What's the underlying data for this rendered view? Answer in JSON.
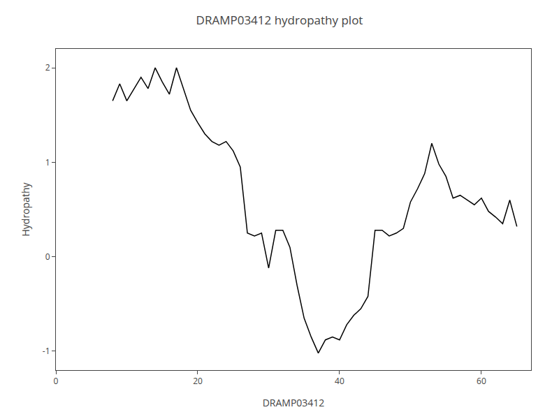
{
  "chart_data": {
    "type": "line",
    "title": "DRAMP03412 hydropathy plot",
    "xlabel": "DRAMP03412",
    "ylabel": "Hydropathy",
    "xlim": [
      0,
      67
    ],
    "ylim": [
      -1.2,
      2.2
    ],
    "xticks": [
      0,
      20,
      40,
      60
    ],
    "yticks": [
      -1,
      0,
      1,
      2
    ],
    "color": "black",
    "grid": false,
    "x": [
      8,
      9,
      10,
      11,
      12,
      13,
      14,
      15,
      16,
      17,
      18,
      19,
      20,
      21,
      22,
      23,
      24,
      25,
      26,
      27,
      28,
      29,
      30,
      31,
      32,
      33,
      34,
      35,
      36,
      37,
      38,
      39,
      40,
      41,
      42,
      43,
      44,
      45,
      46,
      47,
      48,
      49,
      50,
      51,
      52,
      53,
      54,
      55,
      56,
      57,
      58,
      59,
      60,
      61,
      62,
      63,
      64,
      65
    ],
    "values": [
      1.65,
      1.83,
      1.65,
      1.78,
      1.9,
      1.78,
      2.0,
      1.85,
      1.72,
      2.0,
      1.78,
      1.55,
      1.42,
      1.3,
      1.22,
      1.18,
      1.22,
      1.12,
      0.95,
      0.25,
      0.22,
      0.25,
      -0.12,
      0.28,
      0.28,
      0.1,
      -0.3,
      -0.65,
      -0.85,
      -1.02,
      -0.88,
      -0.85,
      -0.88,
      -0.72,
      -0.62,
      -0.55,
      -0.42,
      0.28,
      0.28,
      0.22,
      0.25,
      0.3,
      0.58,
      0.72,
      0.88,
      1.2,
      0.98,
      0.85,
      0.62,
      0.65,
      0.6,
      0.55,
      0.62,
      0.48,
      0.42,
      0.35,
      0.6,
      0.32
    ]
  }
}
